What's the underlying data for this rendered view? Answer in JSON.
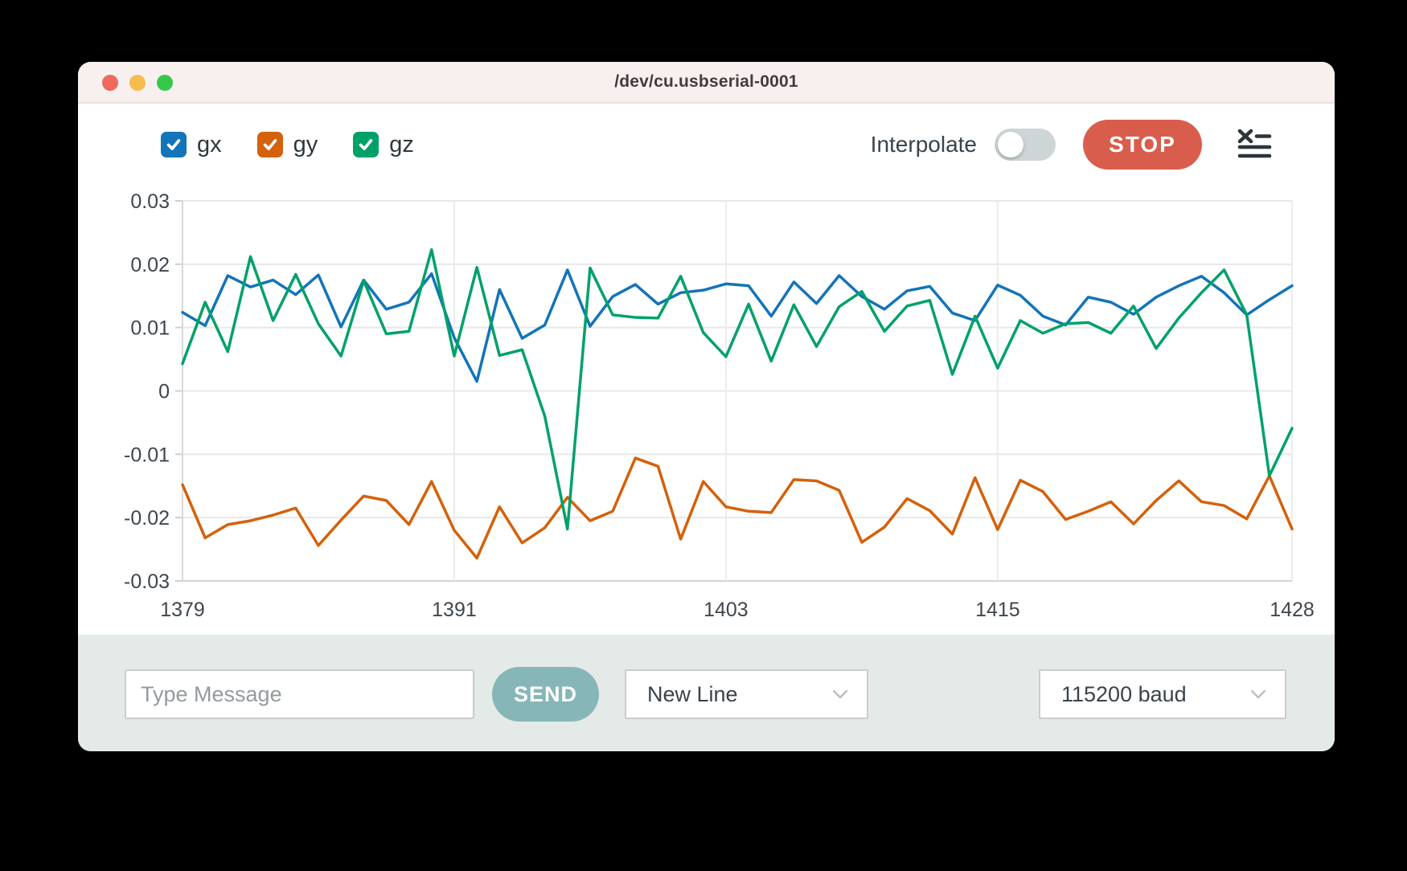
{
  "window": {
    "title": "/dev/cu.usbserial-0001"
  },
  "titlebar": {
    "traffic_lights": [
      {
        "name": "close",
        "color": "#ee6a5f"
      },
      {
        "name": "minimize",
        "color": "#f5bd4e"
      },
      {
        "name": "zoom",
        "color": "#36c84b"
      }
    ]
  },
  "legend": {
    "items": [
      {
        "label": "gx",
        "color": "#1274b9",
        "checked": true
      },
      {
        "label": "gy",
        "color": "#d4610b",
        "checked": true
      },
      {
        "label": "gz",
        "color": "#00a169",
        "checked": true
      }
    ]
  },
  "controls": {
    "interpolate_label": "Interpolate",
    "interpolate_on": false,
    "stop_label": "STOP",
    "stop_color": "#d95d4d",
    "clear_icon": "clear-console-icon"
  },
  "chart_data": {
    "type": "line",
    "x": [
      1379,
      1380,
      1381,
      1382,
      1383,
      1384,
      1385,
      1386,
      1387,
      1388,
      1389,
      1390,
      1391,
      1392,
      1393,
      1394,
      1395,
      1396,
      1397,
      1398,
      1399,
      1400,
      1401,
      1402,
      1403,
      1404,
      1405,
      1406,
      1407,
      1408,
      1409,
      1410,
      1411,
      1412,
      1413,
      1414,
      1415,
      1416,
      1417,
      1418,
      1419,
      1420,
      1421,
      1422,
      1423,
      1424,
      1425,
      1426,
      1427,
      1428
    ],
    "series": [
      {
        "name": "gx",
        "color": "#1274b9",
        "values": [
          0.0124,
          0.0103,
          0.0182,
          0.0164,
          0.0175,
          0.0152,
          0.0183,
          0.0101,
          0.0175,
          0.0129,
          0.014,
          0.0185,
          0.0084,
          0.0015,
          0.016,
          0.0083,
          0.0104,
          0.0191,
          0.0102,
          0.0149,
          0.0168,
          0.0137,
          0.0155,
          0.0159,
          0.0169,
          0.0166,
          0.0118,
          0.0172,
          0.0138,
          0.0182,
          0.0149,
          0.0129,
          0.0158,
          0.0165,
          0.0123,
          0.0111,
          0.0167,
          0.0151,
          0.0118,
          0.0104,
          0.0148,
          0.014,
          0.0121,
          0.0148,
          0.0166,
          0.0181,
          0.0155,
          0.012,
          0.0144,
          0.0166
        ]
      },
      {
        "name": "gy",
        "color": "#d4610b",
        "values": [
          -0.0148,
          -0.0232,
          -0.0211,
          -0.0205,
          -0.0196,
          -0.0185,
          -0.0244,
          -0.0204,
          -0.0166,
          -0.0173,
          -0.0211,
          -0.0143,
          -0.022,
          -0.0264,
          -0.0183,
          -0.024,
          -0.0216,
          -0.0168,
          -0.0205,
          -0.019,
          -0.0106,
          -0.0119,
          -0.0234,
          -0.0143,
          -0.0183,
          -0.019,
          -0.0192,
          -0.014,
          -0.0142,
          -0.0157,
          -0.0239,
          -0.0215,
          -0.017,
          -0.0189,
          -0.0226,
          -0.0137,
          -0.0219,
          -0.0141,
          -0.0159,
          -0.0203,
          -0.019,
          -0.0175,
          -0.021,
          -0.0173,
          -0.0142,
          -0.0175,
          -0.0181,
          -0.0202,
          -0.0134,
          -0.0218
        ]
      },
      {
        "name": "gz",
        "color": "#00a169",
        "values": [
          0.0043,
          0.014,
          0.0062,
          0.0212,
          0.0111,
          0.0184,
          0.0106,
          0.0055,
          0.0174,
          0.009,
          0.0094,
          0.0223,
          0.0055,
          0.0195,
          0.0056,
          0.0065,
          -0.004,
          -0.0218,
          0.0194,
          0.012,
          0.0116,
          0.0115,
          0.0181,
          0.0092,
          0.0054,
          0.0137,
          0.0047,
          0.0136,
          0.007,
          0.0133,
          0.0157,
          0.0094,
          0.0134,
          0.0143,
          0.0026,
          0.0118,
          0.0036,
          0.0111,
          0.0091,
          0.0106,
          0.0108,
          0.0091,
          0.0134,
          0.0067,
          0.0115,
          0.0155,
          0.0191,
          0.012,
          -0.0134,
          -0.0059
        ]
      }
    ],
    "xlim": [
      1379,
      1428
    ],
    "ylim": [
      -0.03,
      0.03
    ],
    "x_ticks": [
      1379,
      1391,
      1403,
      1415,
      1428
    ],
    "y_ticks": [
      0.03,
      0.02,
      0.01,
      0,
      -0.01,
      -0.02,
      -0.03
    ],
    "y_tick_labels": [
      "0.03",
      "0.02",
      "0.01",
      "0",
      "-0.01",
      "-0.02",
      "-0.03"
    ],
    "grid": true,
    "legend_position": "top-left"
  },
  "bottom_bar": {
    "message_placeholder": "Type Message",
    "send_label": "SEND",
    "line_ending": "New Line",
    "baud": "115200 baud"
  }
}
